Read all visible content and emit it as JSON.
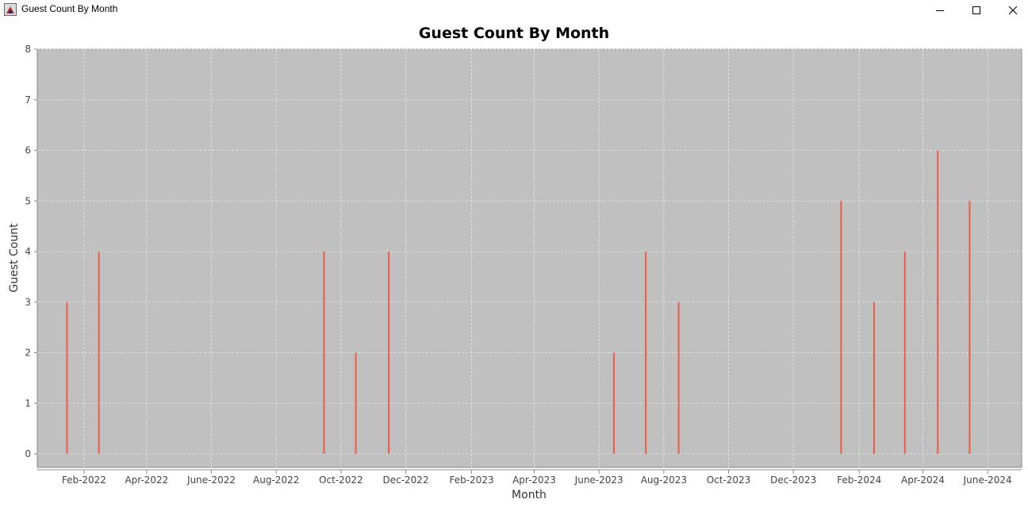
{
  "window": {
    "title": "Guest Count By Month",
    "icons": {
      "app": "java-app-icon",
      "minimize": "minimize-icon",
      "maximize": "maximize-icon",
      "close": "close-icon"
    }
  },
  "colors": {
    "plot_background": "#c0c0c0",
    "series": "#f05a4a",
    "grid": "#e8e8e8"
  },
  "chart_data": {
    "type": "bar",
    "title": "Guest Count By Month",
    "xlabel": "Month",
    "ylabel": "Guest Count",
    "ylim": [
      0,
      8
    ],
    "yticks": [
      0,
      1,
      2,
      3,
      4,
      5,
      6,
      7,
      8
    ],
    "xlim": [
      "2021-12-19",
      "2024-07-03"
    ],
    "xticks": [
      {
        "date": "2022-02-01",
        "label": "Feb-2022"
      },
      {
        "date": "2022-04-01",
        "label": "Apr-2022"
      },
      {
        "date": "2022-06-01",
        "label": "June-2022"
      },
      {
        "date": "2022-08-01",
        "label": "Aug-2022"
      },
      {
        "date": "2022-10-01",
        "label": "Oct-2022"
      },
      {
        "date": "2022-12-01",
        "label": "Dec-2022"
      },
      {
        "date": "2023-02-01",
        "label": "Feb-2023"
      },
      {
        "date": "2023-04-01",
        "label": "Apr-2023"
      },
      {
        "date": "2023-06-01",
        "label": "June-2023"
      },
      {
        "date": "2023-08-01",
        "label": "Aug-2023"
      },
      {
        "date": "2023-10-01",
        "label": "Oct-2023"
      },
      {
        "date": "2023-12-01",
        "label": "Dec-2023"
      },
      {
        "date": "2024-02-01",
        "label": "Feb-2024"
      },
      {
        "date": "2024-04-01",
        "label": "Apr-2024"
      },
      {
        "date": "2024-06-01",
        "label": "June-2024"
      }
    ],
    "grid": true,
    "legend": "none",
    "points": [
      {
        "date": "2022-01-16",
        "value": 3
      },
      {
        "date": "2022-02-15",
        "value": 4
      },
      {
        "date": "2022-09-15",
        "value": 4
      },
      {
        "date": "2022-10-15",
        "value": 2
      },
      {
        "date": "2022-11-15",
        "value": 4
      },
      {
        "date": "2023-06-15",
        "value": 2
      },
      {
        "date": "2023-07-15",
        "value": 4
      },
      {
        "date": "2023-08-15",
        "value": 3
      },
      {
        "date": "2024-01-15",
        "value": 5
      },
      {
        "date": "2024-02-15",
        "value": 3
      },
      {
        "date": "2024-03-15",
        "value": 4
      },
      {
        "date": "2024-04-15",
        "value": 6
      },
      {
        "date": "2024-05-15",
        "value": 5
      }
    ]
  }
}
